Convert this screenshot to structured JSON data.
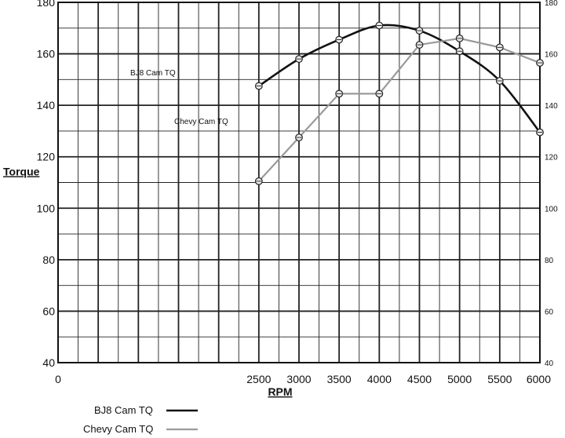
{
  "chart_data": {
    "type": "line",
    "title": "",
    "xlabel": "RPM",
    "ylabel": "Torque",
    "x": [
      2500,
      3000,
      3500,
      4000,
      4500,
      5000,
      5500,
      6000
    ],
    "xlim": [
      0,
      6000
    ],
    "ylim": [
      40,
      180
    ],
    "x_ticks": [
      "0",
      "2500",
      "3000",
      "3500",
      "4000",
      "4500",
      "5000",
      "5500",
      "6000"
    ],
    "y_ticks_left": [
      "40",
      "60",
      "80",
      "100",
      "120",
      "140",
      "160",
      "180"
    ],
    "y_ticks_right": [
      "40",
      "60",
      "80",
      "100",
      "120",
      "140",
      "160",
      "180"
    ],
    "grid": true,
    "legend_position": "bottom-left",
    "series": [
      {
        "name": "BJ8 Cam TQ",
        "label_on_plot": "BJ8 Cam TQ",
        "color": "#111111",
        "values": [
          147.5,
          158,
          165.5,
          171,
          169,
          161,
          149.5,
          129.5
        ]
      },
      {
        "name": "Chevy Cam TQ",
        "label_on_plot": "Chevy Cam TQ",
        "color": "#999999",
        "values": [
          110.5,
          127.5,
          144.5,
          144.5,
          163.5,
          166,
          162.5,
          156.5
        ]
      }
    ]
  }
}
